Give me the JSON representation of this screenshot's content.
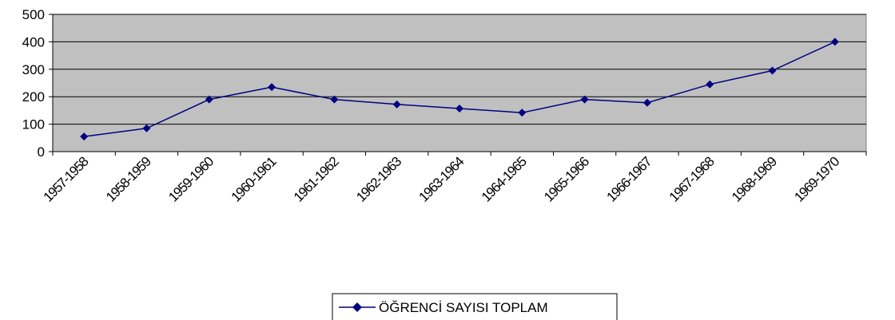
{
  "chart_data": {
    "type": "line",
    "categories": [
      "1957-1958",
      "1958-1959",
      "1959-1960",
      "1960-1961",
      "1961-1962",
      "1962-1963",
      "1963-1964",
      "1964-1965",
      "1965-1966",
      "1966-1967",
      "1967-1968",
      "1968-1969",
      "1969-1970"
    ],
    "series": [
      {
        "name": "ÖĞRENCİ SAYISI TOPLAM",
        "values": [
          55,
          85,
          190,
          235,
          190,
          172,
          157,
          142,
          190,
          178,
          245,
          295,
          400
        ]
      }
    ],
    "ylim": [
      0,
      500
    ],
    "yticks": [
      0,
      100,
      200,
      300,
      400,
      500
    ],
    "grid": true,
    "legend_position": "bottom",
    "colors": {
      "plot_background": "#c0c0c0",
      "line": "#000080",
      "marker": "#000080",
      "gridline": "#000000"
    }
  }
}
